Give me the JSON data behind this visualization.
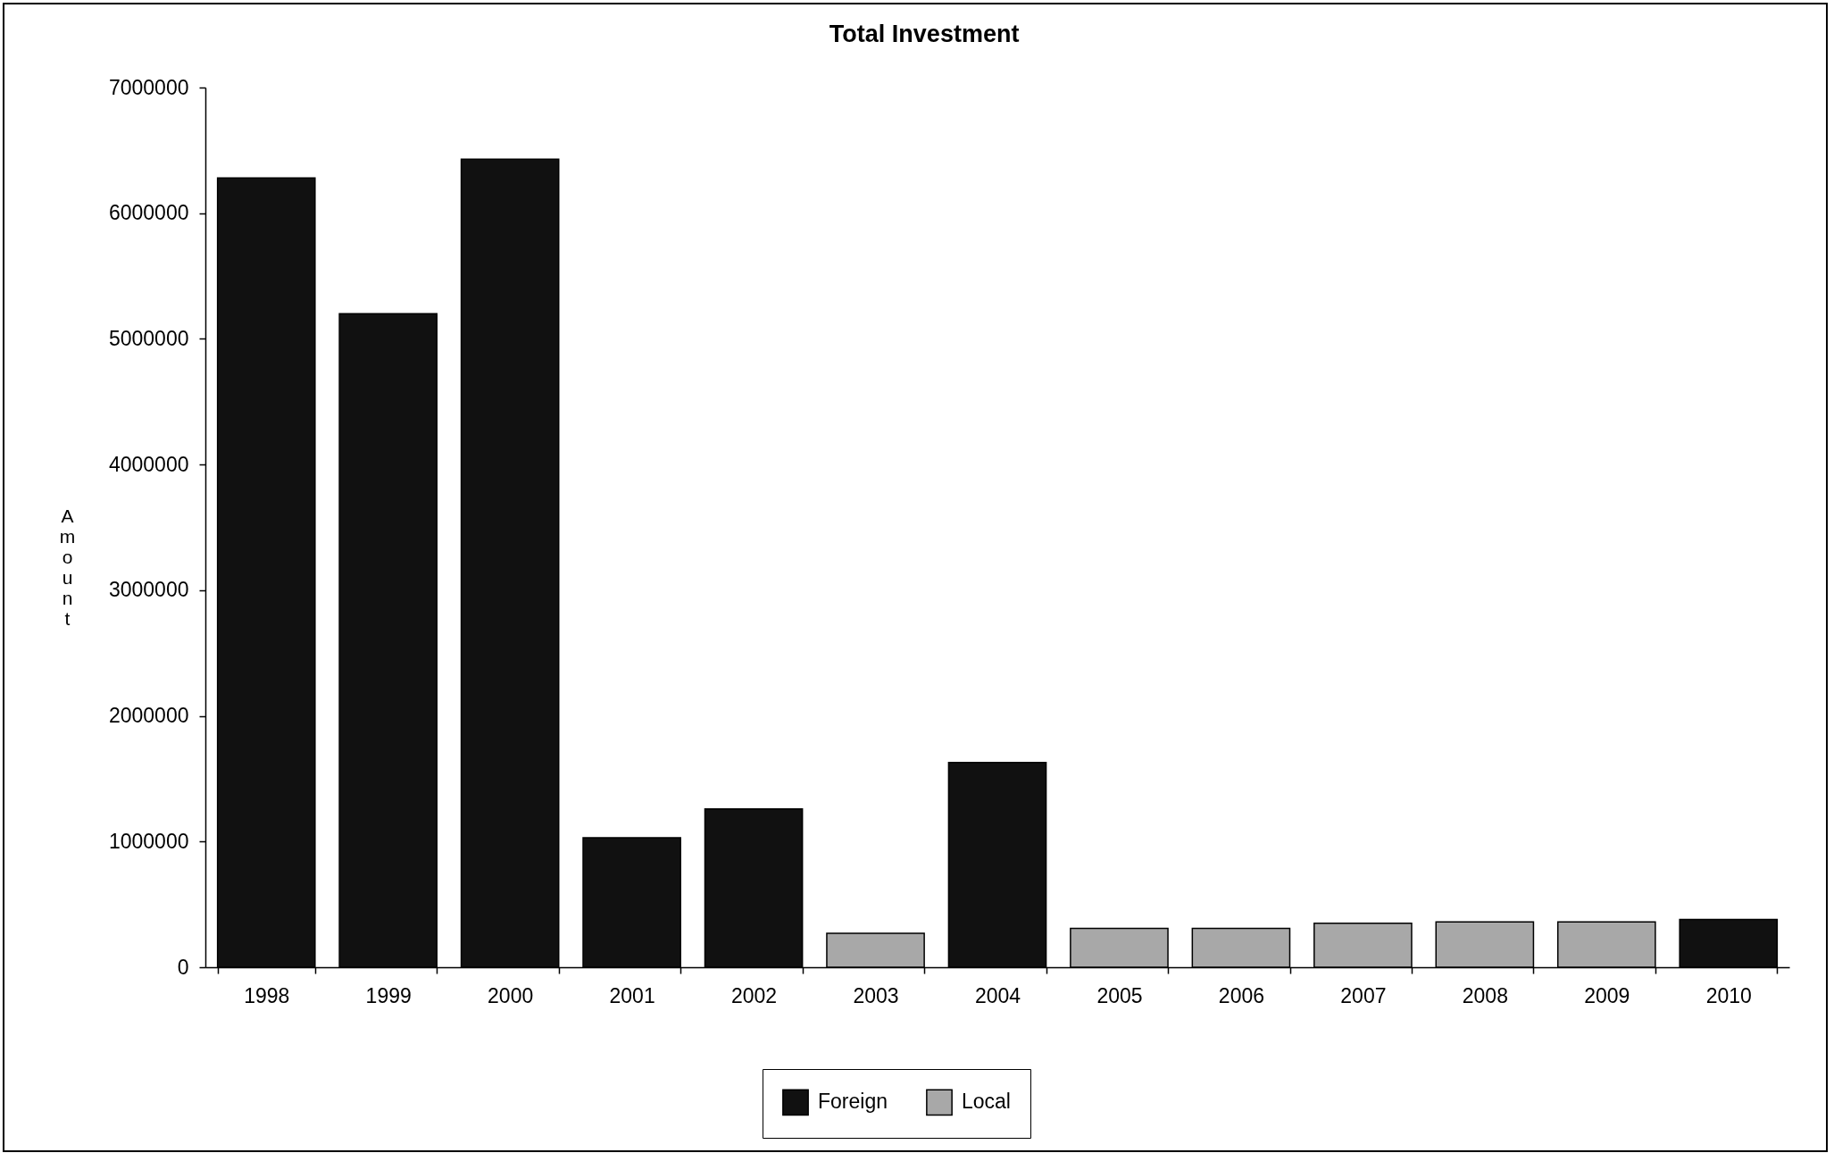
{
  "chart_data": {
    "type": "bar",
    "title": "Total Investment",
    "ylabel": "Amount",
    "categories": [
      "1998",
      "1999",
      "2000",
      "2001",
      "2002",
      "2003",
      "2004",
      "2005",
      "2006",
      "2007",
      "2008",
      "2009",
      "2010"
    ],
    "series": [
      {
        "name": "Foreign",
        "color": "#111111",
        "values": [
          6280000,
          5200000,
          6430000,
          1030000,
          1260000,
          null,
          1630000,
          null,
          null,
          null,
          null,
          null,
          380000
        ]
      },
      {
        "name": "Local",
        "color": "#a8a8a8",
        "values": [
          null,
          null,
          null,
          null,
          null,
          270000,
          null,
          310000,
          310000,
          350000,
          360000,
          360000,
          null
        ]
      }
    ],
    "stacked": true,
    "ylim": [
      0,
      7000000
    ],
    "yticks": [
      0,
      1000000,
      2000000,
      3000000,
      4000000,
      5000000,
      6000000,
      7000000
    ],
    "legend": "bottom"
  }
}
